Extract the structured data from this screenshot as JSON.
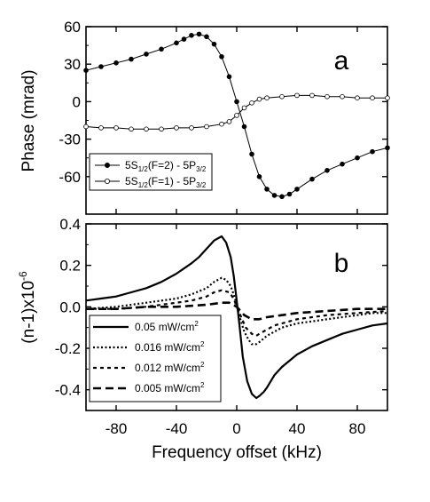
{
  "chart_data": [
    {
      "panel_label": "a",
      "type": "line",
      "title": "",
      "xlabel": "",
      "ylabel": "Phase (mrad)",
      "xlim": [
        -100,
        100
      ],
      "ylim": [
        -90,
        60
      ],
      "yticks": [
        60,
        30,
        0,
        -30,
        -60
      ],
      "xticks": [
        -80,
        -40,
        0,
        40,
        80
      ],
      "legend_position": "bottom-left",
      "series": [
        {
          "name_parts": [
            "5S",
            "1/2",
            "(F=2) - 5P",
            "3/2"
          ],
          "marker": "filled-circle",
          "x": [
            -100,
            -90,
            -80,
            -70,
            -60,
            -50,
            -40,
            -35,
            -30,
            -25,
            -20,
            -15,
            -10,
            -5,
            0,
            5,
            10,
            15,
            20,
            25,
            30,
            35,
            40,
            50,
            60,
            70,
            80,
            90,
            100
          ],
          "y": [
            25,
            28,
            31,
            34,
            38,
            42,
            47,
            50,
            53,
            54,
            52,
            46,
            36,
            20,
            0,
            -20,
            -42,
            -60,
            -70,
            -75,
            -76,
            -74,
            -70,
            -62,
            -55,
            -50,
            -45,
            -40,
            -37
          ]
        },
        {
          "name_parts": [
            "5S",
            "1/2",
            "(F=1) - 5P",
            "3/2"
          ],
          "marker": "open-circle",
          "x": [
            -100,
            -90,
            -80,
            -70,
            -60,
            -50,
            -40,
            -30,
            -20,
            -10,
            -5,
            0,
            5,
            10,
            15,
            20,
            30,
            40,
            50,
            60,
            70,
            80,
            90,
            100
          ],
          "y": [
            -20,
            -21,
            -21,
            -22,
            -22,
            -22,
            -21,
            -21,
            -20,
            -18,
            -16,
            -11,
            -5,
            -1,
            2,
            3,
            4,
            5,
            5,
            4,
            4,
            3,
            3,
            3
          ]
        }
      ]
    },
    {
      "panel_label": "b",
      "type": "line",
      "title": "",
      "xlabel": "Frequency offset (kHz)",
      "ylabel_base": "(n-1)x10",
      "ylabel_exp": "-6",
      "xlim": [
        -100,
        100
      ],
      "ylim": [
        -0.5,
        0.4
      ],
      "yticks": [
        0.4,
        0.2,
        0.0,
        -0.2,
        -0.4
      ],
      "ytick_labels": [
        "0.4",
        "0.2",
        "0.0",
        "-0.2",
        "-0.4"
      ],
      "xticks": [
        -80,
        -40,
        0,
        40,
        80
      ],
      "legend_position": "bottom-left",
      "series": [
        {
          "name_base": "0.05 mW/cm",
          "name_exp": "2",
          "dash": "solid",
          "x": [
            -100,
            -90,
            -80,
            -70,
            -60,
            -50,
            -40,
            -30,
            -25,
            -20,
            -15,
            -10,
            -7,
            -4,
            -2,
            0,
            2,
            4,
            7,
            10,
            13,
            15,
            18,
            20,
            25,
            30,
            40,
            50,
            60,
            70,
            80,
            90,
            100
          ],
          "y": [
            0.03,
            0.04,
            0.05,
            0.07,
            0.09,
            0.12,
            0.16,
            0.21,
            0.24,
            0.28,
            0.32,
            0.34,
            0.31,
            0.24,
            0.15,
            0.03,
            -0.1,
            -0.24,
            -0.36,
            -0.42,
            -0.44,
            -0.43,
            -0.41,
            -0.39,
            -0.33,
            -0.29,
            -0.23,
            -0.19,
            -0.16,
            -0.13,
            -0.11,
            -0.09,
            -0.08
          ]
        },
        {
          "name_base": "0.016 mW/cm",
          "name_exp": "2",
          "dash": "dot",
          "x": [
            -100,
            -80,
            -60,
            -40,
            -30,
            -20,
            -15,
            -10,
            -7,
            -4,
            -2,
            0,
            2,
            5,
            8,
            10,
            13,
            15,
            20,
            25,
            30,
            40,
            50,
            60,
            70,
            80,
            90,
            100
          ],
          "y": [
            -0.01,
            0.0,
            0.02,
            0.04,
            0.06,
            0.09,
            0.12,
            0.14,
            0.13,
            0.1,
            0.06,
            0.01,
            -0.05,
            -0.12,
            -0.16,
            -0.18,
            -0.18,
            -0.17,
            -0.14,
            -0.12,
            -0.1,
            -0.08,
            -0.07,
            -0.06,
            -0.05,
            -0.04,
            -0.03,
            -0.03
          ]
        },
        {
          "name_base": "0.012 mW/cm",
          "name_exp": "2",
          "dash": "dash",
          "x": [
            -100,
            -80,
            -60,
            -40,
            -30,
            -20,
            -15,
            -10,
            -5,
            -2,
            0,
            3,
            6,
            10,
            13,
            15,
            20,
            25,
            30,
            40,
            50,
            60,
            80,
            100
          ],
          "y": [
            -0.01,
            -0.01,
            0.0,
            0.02,
            0.03,
            0.05,
            0.07,
            0.08,
            0.07,
            0.04,
            0.0,
            -0.05,
            -0.1,
            -0.13,
            -0.14,
            -0.13,
            -0.11,
            -0.09,
            -0.08,
            -0.06,
            -0.05,
            -0.04,
            -0.03,
            -0.02
          ]
        },
        {
          "name_base": "0.005 mW/cm",
          "name_exp": "2",
          "dash": "longdash",
          "x": [
            -100,
            -80,
            -60,
            -40,
            -20,
            -10,
            -5,
            0,
            5,
            10,
            15,
            20,
            30,
            40,
            60,
            80,
            100
          ],
          "y": [
            -0.01,
            -0.01,
            0.0,
            0.0,
            0.01,
            0.02,
            0.02,
            0.0,
            -0.04,
            -0.06,
            -0.06,
            -0.05,
            -0.04,
            -0.03,
            -0.02,
            -0.01,
            -0.01
          ]
        }
      ]
    }
  ]
}
